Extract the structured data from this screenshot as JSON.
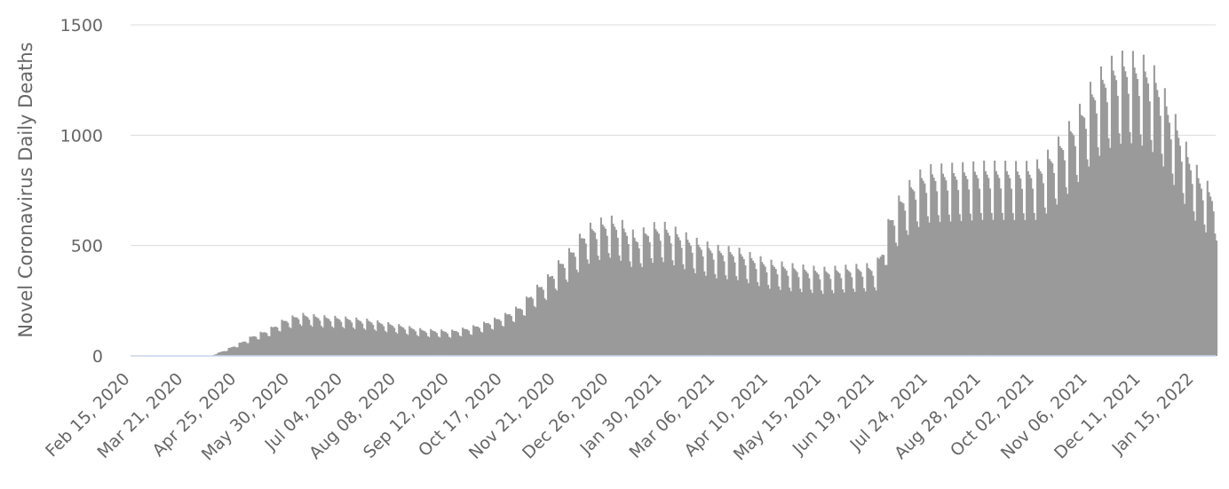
{
  "chart_data": {
    "type": "bar",
    "ylabel": "Novel Coronavirus Daily Deaths",
    "xlabel": "",
    "ylim": [
      0,
      1500
    ],
    "yticks": [
      0,
      500,
      1000,
      1500
    ],
    "x_start": "2020-02-15",
    "x_end": "2022-01-29",
    "xticks": [
      "Feb 15, 2020",
      "Mar 21, 2020",
      "Apr 25, 2020",
      "May 30, 2020",
      "Jul 04, 2020",
      "Aug 08, 2020",
      "Sep 12, 2020",
      "Oct 17, 2020",
      "Nov 21, 2020",
      "Dec 26, 2020",
      "Jan 30, 2021",
      "Mar 06, 2021",
      "Apr 10, 2021",
      "May 15, 2021",
      "Jun 19, 2021",
      "Jul 24, 2021",
      "Aug 28, 2021",
      "Oct 02, 2021",
      "Nov 06, 2021",
      "Dec 11, 2021",
      "Jan 15, 2022"
    ],
    "grid": true,
    "legend": "none",
    "bar_color": "#9a9a9a",
    "series": [
      {
        "anchors": [
          [
            "2020-02-15",
            0
          ],
          [
            "2020-04-08",
            0
          ],
          [
            "2020-04-10",
            8
          ],
          [
            "2020-04-15",
            20
          ],
          [
            "2020-04-20",
            35
          ],
          [
            "2020-04-25",
            50
          ],
          [
            "2020-05-05",
            85
          ],
          [
            "2020-05-15",
            110
          ],
          [
            "2020-05-25",
            150
          ],
          [
            "2020-06-05",
            175
          ],
          [
            "2020-06-20",
            165
          ],
          [
            "2020-07-04",
            160
          ],
          [
            "2020-07-20",
            150
          ],
          [
            "2020-08-08",
            130
          ],
          [
            "2020-08-25",
            110
          ],
          [
            "2020-09-12",
            105
          ],
          [
            "2020-09-25",
            120
          ],
          [
            "2020-10-05",
            140
          ],
          [
            "2020-10-17",
            170
          ],
          [
            "2020-10-28",
            210
          ],
          [
            "2020-11-05",
            270
          ],
          [
            "2020-11-15",
            330
          ],
          [
            "2020-11-21",
            380
          ],
          [
            "2020-12-01",
            450
          ],
          [
            "2020-12-10",
            530
          ],
          [
            "2020-12-20",
            560
          ],
          [
            "2020-12-26",
            570
          ],
          [
            "2021-01-03",
            550
          ],
          [
            "2021-01-12",
            500
          ],
          [
            "2021-01-22",
            540
          ],
          [
            "2021-01-30",
            545
          ],
          [
            "2021-02-08",
            520
          ],
          [
            "2021-02-20",
            480
          ],
          [
            "2021-03-06",
            450
          ],
          [
            "2021-03-20",
            440
          ],
          [
            "2021-04-01",
            410
          ],
          [
            "2021-04-10",
            390
          ],
          [
            "2021-04-25",
            375
          ],
          [
            "2021-05-15",
            360
          ],
          [
            "2021-06-01",
            370
          ],
          [
            "2021-06-13",
            375
          ],
          [
            "2021-06-19",
            380
          ],
          [
            "2021-06-23",
            450
          ],
          [
            "2021-06-28",
            580
          ],
          [
            "2021-07-05",
            660
          ],
          [
            "2021-07-12",
            720
          ],
          [
            "2021-07-19",
            760
          ],
          [
            "2021-07-24",
            775
          ],
          [
            "2021-08-05",
            780
          ],
          [
            "2021-08-18",
            785
          ],
          [
            "2021-08-28",
            790
          ],
          [
            "2021-09-10",
            790
          ],
          [
            "2021-09-22",
            788
          ],
          [
            "2021-10-02",
            790
          ],
          [
            "2021-10-08",
            820
          ],
          [
            "2021-10-15",
            870
          ],
          [
            "2021-10-24",
            950
          ],
          [
            "2021-11-01",
            1030
          ],
          [
            "2021-11-06",
            1100
          ],
          [
            "2021-11-15",
            1180
          ],
          [
            "2021-11-22",
            1220
          ],
          [
            "2021-11-30",
            1240
          ],
          [
            "2021-12-08",
            1230
          ],
          [
            "2021-12-15",
            1210
          ],
          [
            "2021-12-22",
            1150
          ],
          [
            "2021-12-28",
            1050
          ],
          [
            "2022-01-04",
            950
          ],
          [
            "2022-01-10",
            850
          ],
          [
            "2022-01-17",
            760
          ],
          [
            "2022-01-24",
            700
          ],
          [
            "2022-01-29",
            670
          ]
        ]
      }
    ]
  }
}
